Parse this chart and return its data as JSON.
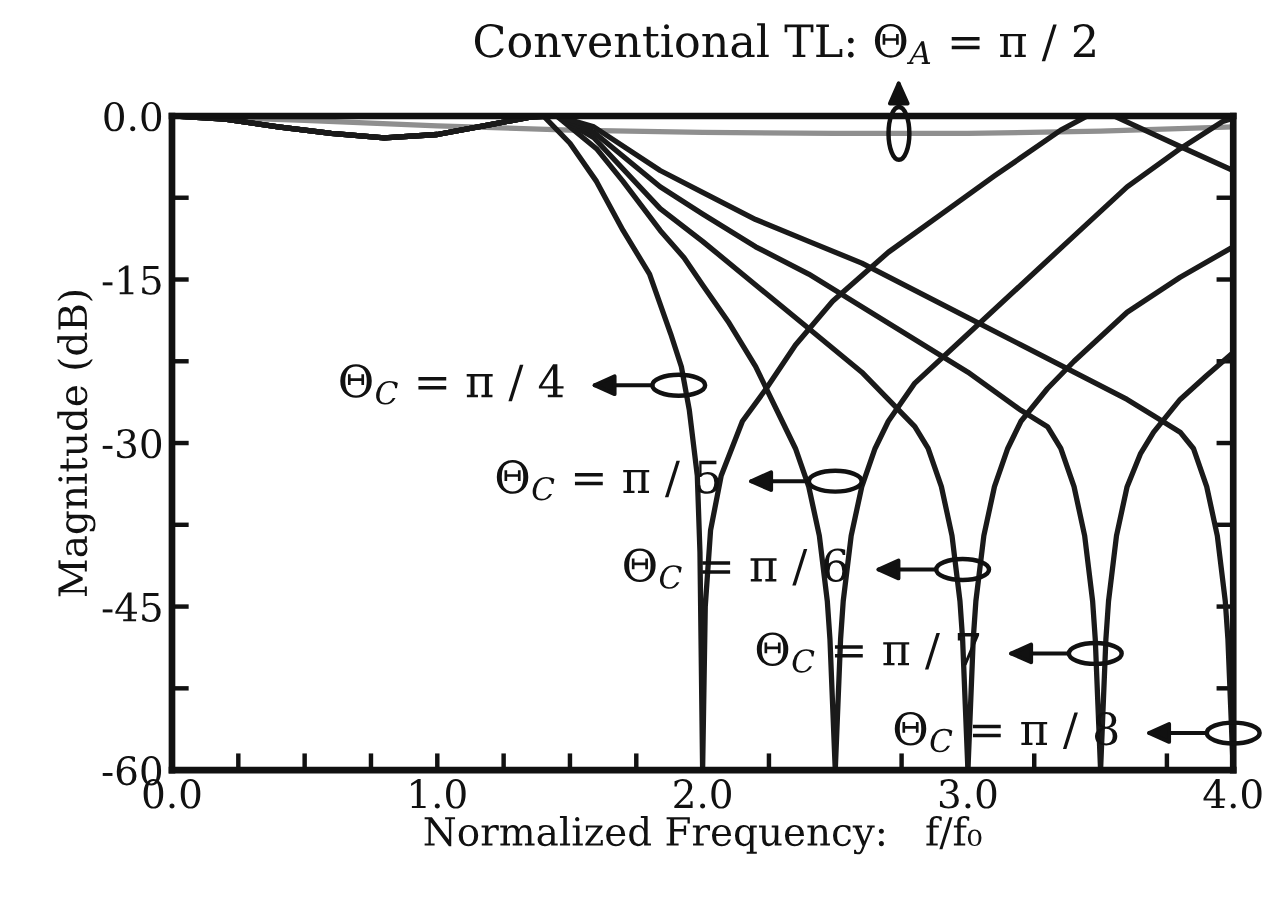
{
  "chart_data": {
    "type": "line",
    "xlabel": "Normalized Frequency:   f/f₀",
    "ylabel": "Magnitude (dB)",
    "xlim": [
      0.0,
      4.0
    ],
    "ylim": [
      -60,
      0
    ],
    "xticks": [
      {
        "value": 0.0,
        "label": "0.0"
      },
      {
        "value": 0.25,
        "label": null
      },
      {
        "value": 0.5,
        "label": null
      },
      {
        "value": 0.75,
        "label": null
      },
      {
        "value": 1.0,
        "label": "1.0"
      },
      {
        "value": 1.25,
        "label": null
      },
      {
        "value": 1.5,
        "label": null
      },
      {
        "value": 1.75,
        "label": null
      },
      {
        "value": 2.0,
        "label": "2.0"
      },
      {
        "value": 2.25,
        "label": null
      },
      {
        "value": 2.5,
        "label": null
      },
      {
        "value": 2.75,
        "label": null
      },
      {
        "value": 3.0,
        "label": "3.0"
      },
      {
        "value": 3.25,
        "label": null
      },
      {
        "value": 3.5,
        "label": null
      },
      {
        "value": 3.75,
        "label": null
      },
      {
        "value": 4.0,
        "label": "4.0"
      }
    ],
    "yticks": [
      {
        "value": 0,
        "label": "0.0"
      },
      {
        "value": -7.5,
        "label": null
      },
      -15,
      {
        "value": -22.5,
        "label": null
      },
      -30,
      {
        "value": -37.5,
        "label": null
      },
      -45,
      {
        "value": -52.5,
        "label": null
      },
      -60
    ],
    "series": [
      {
        "color": "#8f8f8f",
        "x": [
          0,
          0.5,
          1.0,
          1.5,
          2.0,
          2.5,
          3.0,
          3.5,
          4.0
        ],
        "values": [
          0,
          -0.4,
          -0.9,
          -1.3,
          -1.5,
          -1.6,
          -1.6,
          -1.4,
          -1.0
        ]
      },
      {
        "color": "#1a1a1a",
        "x": [
          0,
          0.2,
          0.4,
          0.6,
          0.8,
          1.0,
          1.2,
          1.35,
          1.4,
          1.5,
          1.6,
          1.7,
          1.8,
          1.88,
          1.92,
          1.95,
          1.98,
          1.99,
          2.0,
          2.01,
          2.03,
          2.07,
          2.15,
          2.24,
          2.35,
          2.49,
          2.7,
          2.9,
          3.1,
          3.35,
          3.45,
          3.55,
          3.8,
          4.0
        ],
        "values": [
          0,
          -0.3,
          -1.0,
          -1.6,
          -2.0,
          -1.7,
          -0.8,
          -0.1,
          0,
          -2.5,
          -6,
          -10.5,
          -14.5,
          -20,
          -23,
          -27,
          -33,
          -40,
          -60,
          -45,
          -38,
          -33,
          -28,
          -25,
          -21,
          -17,
          -12.5,
          -9,
          -5.5,
          -1.3,
          0,
          0,
          -2.8,
          -5
        ]
      },
      {
        "color": "#1a1a1a",
        "x": [
          0,
          0.2,
          0.4,
          0.6,
          0.8,
          1.0,
          1.2,
          1.35,
          1.45,
          1.6,
          1.7,
          1.84,
          1.93,
          2.0,
          2.1,
          2.2,
          2.3,
          2.35,
          2.4,
          2.44,
          2.47,
          2.48,
          2.49,
          2.5,
          2.51,
          2.52,
          2.53,
          2.56,
          2.6,
          2.65,
          2.7,
          2.8,
          3.0,
          3.2,
          3.4,
          3.6,
          3.8,
          3.96,
          4.0
        ],
        "values": [
          0,
          -0.3,
          -1.0,
          -1.6,
          -2.0,
          -1.7,
          -0.8,
          -0.1,
          0,
          -3,
          -6,
          -10.5,
          -13,
          -15.5,
          -19,
          -23,
          -28,
          -30.5,
          -34,
          -38.5,
          -44.5,
          -48,
          -54,
          -60,
          -54,
          -48,
          -44.5,
          -38.5,
          -34,
          -30.5,
          -28,
          -24.5,
          -20,
          -15.5,
          -11,
          -6.5,
          -3,
          -0.5,
          -0.2
        ]
      },
      {
        "color": "#1a1a1a",
        "x": [
          0,
          0.2,
          0.4,
          0.6,
          0.8,
          1.0,
          1.2,
          1.35,
          1.45,
          1.59,
          1.84,
          2.0,
          2.2,
          2.4,
          2.6,
          2.7,
          2.8,
          2.85,
          2.9,
          2.94,
          2.97,
          2.98,
          2.99,
          3.0,
          3.01,
          3.02,
          3.03,
          3.06,
          3.1,
          3.15,
          3.2,
          3.3,
          3.4,
          3.6,
          3.8,
          4.0
        ],
        "values": [
          0,
          -0.3,
          -1.0,
          -1.6,
          -2.0,
          -1.7,
          -0.8,
          -0.1,
          0,
          -2,
          -8.5,
          -11.5,
          -15.5,
          -19.5,
          -23.5,
          -26,
          -28.5,
          -30.5,
          -34,
          -38.5,
          -44.5,
          -48,
          -54,
          -60,
          -54,
          -48,
          -44.5,
          -38.5,
          -34,
          -30.5,
          -28,
          -25,
          -22.5,
          -18,
          -14.8,
          -12
        ]
      },
      {
        "color": "#1a1a1a",
        "x": [
          0,
          0.2,
          0.4,
          0.6,
          0.8,
          1.0,
          1.2,
          1.35,
          1.45,
          1.59,
          1.84,
          2.0,
          2.2,
          2.4,
          2.6,
          2.8,
          3.0,
          3.2,
          3.3,
          3.35,
          3.4,
          3.44,
          3.47,
          3.48,
          3.49,
          3.5,
          3.51,
          3.52,
          3.53,
          3.56,
          3.6,
          3.65,
          3.7,
          3.8,
          3.9,
          4.0
        ],
        "values": [
          0,
          -0.3,
          -1.0,
          -1.6,
          -2.0,
          -1.7,
          -0.8,
          -0.1,
          0,
          -1.5,
          -6.5,
          -9,
          -12,
          -14.5,
          -17.5,
          -20.5,
          -23.5,
          -27,
          -28.5,
          -30.5,
          -34,
          -38.5,
          -44.5,
          -48,
          -54,
          -60,
          -54,
          -48,
          -44.5,
          -38.5,
          -34,
          -31,
          -29,
          -26,
          -23.8,
          -21.7
        ]
      },
      {
        "color": "#1a1a1a",
        "x": [
          0,
          0.2,
          0.4,
          0.6,
          0.8,
          1.0,
          1.2,
          1.35,
          1.45,
          1.59,
          1.84,
          2.0,
          2.2,
          2.4,
          2.6,
          2.8,
          3.0,
          3.2,
          3.4,
          3.6,
          3.7,
          3.8,
          3.85,
          3.9,
          3.94,
          3.97,
          3.98,
          3.99,
          4.0
        ],
        "values": [
          0,
          -0.3,
          -1.0,
          -1.6,
          -2.0,
          -1.7,
          -0.8,
          -0.1,
          0,
          -1,
          -5,
          -7,
          -9.5,
          -11.5,
          -13.5,
          -16,
          -18.5,
          -21,
          -23.5,
          -26,
          -27.5,
          -29,
          -30.5,
          -34,
          -38.5,
          -44.5,
          -48,
          -54,
          -60
        ]
      }
    ],
    "annotations": [
      {
        "text": "Conventional TL: Θ$_{A}$ = π / 2",
        "x": 2.74,
        "y": -1.6
      },
      {
        "text": "Θ$_{C}$ = π / 4",
        "x": 1.91,
        "y": -24.7
      },
      {
        "text": "Θ$_{C}$ = π / 5",
        "x": 2.5,
        "y": -33.5
      },
      {
        "text": "Θ$_{C}$ = π / 6",
        "x": 2.98,
        "y": -41.6
      },
      {
        "text": "Θ$_{C}$ = π / 7",
        "x": 3.48,
        "y": -49.3
      },
      {
        "text": "Θ$_{C}$ = π / 8",
        "x": 4.0,
        "y": -56.6
      }
    ]
  }
}
